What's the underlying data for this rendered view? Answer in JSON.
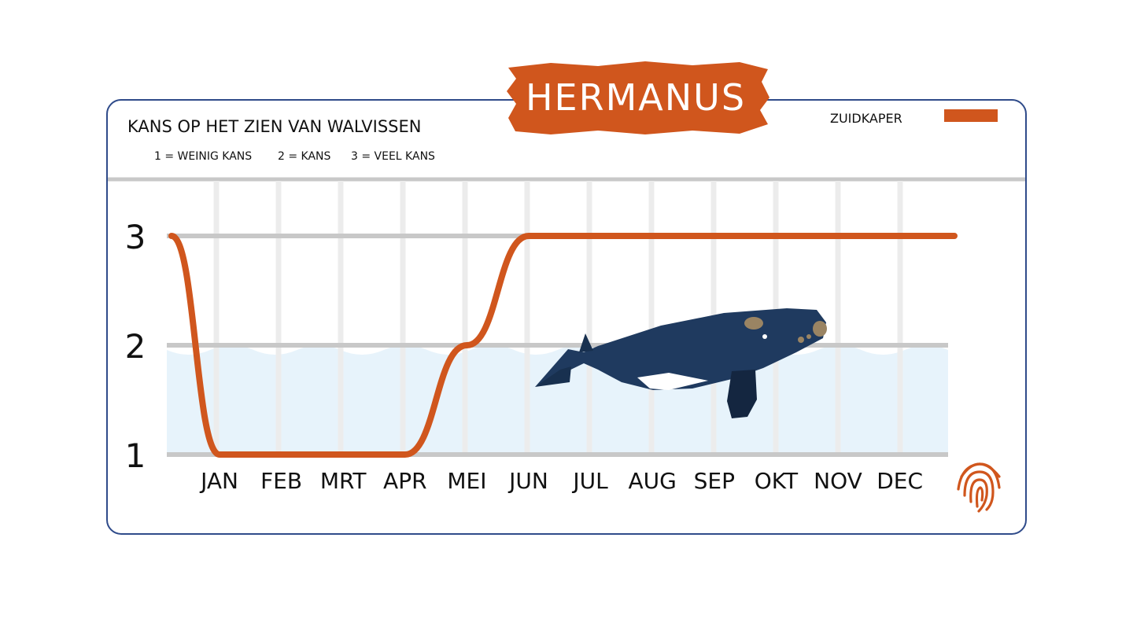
{
  "header": {
    "badge_title": "HERMANUS",
    "title": "KANS OP HET ZIEN VAN WALVISSEN",
    "scale_notes": [
      "1 = WEINIG KANS",
      "2 = KANS",
      "3 = VEEL KANS"
    ]
  },
  "colors": {
    "accent": "#d0561d",
    "frame": "#2f4b8a",
    "water": "#e7f3fb",
    "grid": "#c8c8c8",
    "whale": "#1f3a5f"
  },
  "icons": {
    "whale": "whale-illustration",
    "fingerprint": "fingerprint-icon"
  },
  "chart_data": {
    "type": "line",
    "categories": [
      "JAN",
      "FEB",
      "MRT",
      "APR",
      "MEI",
      "JUN",
      "JUL",
      "AUG",
      "SEP",
      "OKT",
      "NOV",
      "DEC"
    ],
    "yticks": [
      "1",
      "2",
      "3"
    ],
    "ylim": [
      1,
      3
    ],
    "legend_position": "top-right",
    "series": [
      {
        "name": "ZUIDKAPER",
        "color": "#d0561d",
        "values": [
          1,
          1,
          1,
          1,
          2,
          3,
          3,
          3,
          3,
          3,
          3,
          3
        ]
      }
    ]
  }
}
